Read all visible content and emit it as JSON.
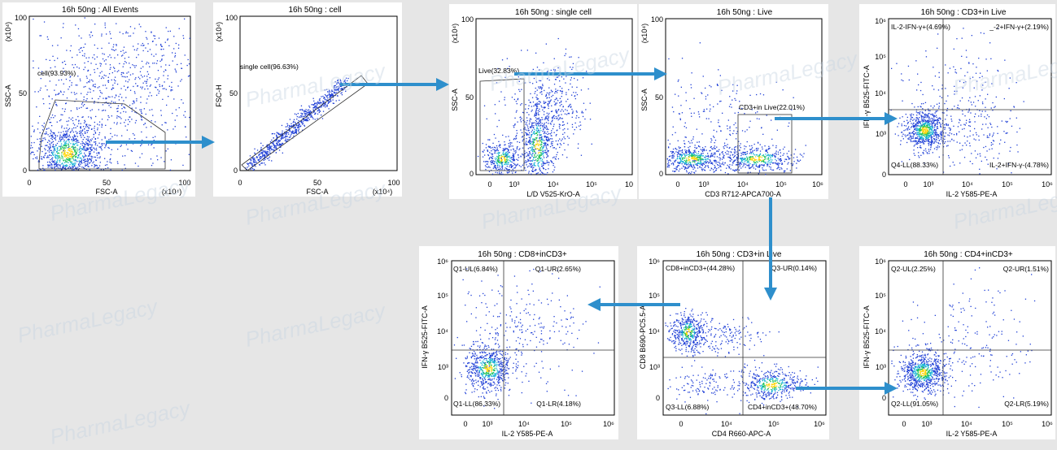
{
  "watermark": "PharmaLegacy",
  "colors": {
    "events": "#1f3fd6",
    "arrow": "#2e8fcc"
  },
  "chart_data": [
    {
      "id": "p1",
      "type": "scatter",
      "title": "16h 50ng : All Events",
      "xlabel": "FSC-A",
      "ylabel": "SSC-A",
      "x_unit": "(x10⁴)",
      "y_unit": "(x10⁴)",
      "scale": "linear",
      "xlim": [
        0,
        100
      ],
      "ylim": [
        0,
        100
      ],
      "xticks": [
        "0",
        "50",
        "100"
      ],
      "yticks": [
        "0",
        "50",
        "100"
      ],
      "gates": [
        {
          "name": "cell",
          "label": "cell(93.93%)",
          "pct": 93.93
        }
      ]
    },
    {
      "id": "p2",
      "type": "scatter",
      "title": "16h 50ng : cell",
      "xlabel": "FSC-A",
      "ylabel": "FSC-H",
      "x_unit": "(x10⁴)",
      "y_unit": "(x10⁴)",
      "scale": "linear",
      "xlim": [
        0,
        100
      ],
      "ylim": [
        0,
        100
      ],
      "xticks": [
        "0",
        "50",
        "100"
      ],
      "yticks": [
        "0",
        "50",
        "100"
      ],
      "gates": [
        {
          "name": "single cell",
          "label": "single cell(96.63%)",
          "pct": 96.63
        }
      ]
    },
    {
      "id": "p3",
      "type": "scatter",
      "title": "16h 50ng : single cell",
      "xlabel": "L/D V525-KrO-A",
      "ylabel": "SSC-A",
      "y_unit": "(x10⁴)",
      "scale": "log-x",
      "ylim": [
        0,
        100
      ],
      "xticks": [
        "0",
        "10³",
        "10⁴",
        "10⁵",
        "10"
      ],
      "yticks": [
        "0",
        "50",
        "100"
      ],
      "gates": [
        {
          "name": "Live",
          "label": "Live(32.83%)",
          "pct": 32.83
        }
      ]
    },
    {
      "id": "p4",
      "type": "scatter",
      "title": "16h 50ng : Live",
      "xlabel": "CD3 R712-APCA700-A",
      "ylabel": "SSC-A",
      "y_unit": "(x10⁴)",
      "scale": "log-x",
      "ylim": [
        0,
        100
      ],
      "xticks": [
        "0",
        "10³",
        "10⁴",
        "10⁵",
        "10⁶"
      ],
      "yticks": [
        "0",
        "50",
        "100"
      ],
      "gates": [
        {
          "name": "CD3+in Live",
          "label": "CD3+in Live(22.01%)",
          "pct": 22.01
        }
      ]
    },
    {
      "id": "p5",
      "type": "scatter",
      "title": "16h 50ng : CD3+in Live",
      "xlabel": "IL-2 Y585-PE-A",
      "ylabel": "IFN-γ B525-FITC-A",
      "scale": "log",
      "xticks": [
        "0",
        "10³",
        "10⁴",
        "10⁵",
        "10⁶"
      ],
      "yticks": [
        "0",
        "10³",
        "10⁴",
        "10⁵",
        "10⁶"
      ],
      "quadrants": {
        "UL": "IL-2-IFN-γ+(4.69%)",
        "UR": "_-2+IFN-γ+(2.19%)",
        "LL": "Q4-LL(88.33%)",
        "LR": "IL-2+IFN-γ-(4.78%)"
      },
      "values": {
        "UL": 4.69,
        "UR": 2.19,
        "LL": 88.33,
        "LR": 4.78
      }
    },
    {
      "id": "p6",
      "type": "scatter",
      "title": "16h 50ng : CD3+in Live",
      "xlabel": "CD4 R660-APC-A",
      "ylabel": "CD8 B690-PC5.5-A",
      "scale": "log",
      "xticks": [
        "0",
        "10⁴",
        "10⁵",
        "10⁶"
      ],
      "yticks": [
        "0",
        "10³",
        "10⁴",
        "10⁵",
        "10⁶"
      ],
      "quadrants": {
        "UL": "CD8+inCD3+(44.28%)",
        "UR": "Q3-UR(0.14%)",
        "LL": "Q3-LL(6.88%)",
        "LR": "CD4+inCD3+(48.70%)"
      },
      "values": {
        "UL": 44.28,
        "UR": 0.14,
        "LL": 6.88,
        "LR": 48.7
      }
    },
    {
      "id": "p7",
      "type": "scatter",
      "title": "16h 50ng : CD8+inCD3+",
      "xlabel": "IL-2 Y585-PE-A",
      "ylabel": "IFN-γ B525-FITC-A",
      "scale": "log",
      "xticks": [
        "0",
        "10³",
        "10⁴",
        "10⁵",
        "10⁶"
      ],
      "yticks": [
        "0",
        "10³",
        "10⁴",
        "10⁵",
        "10⁶"
      ],
      "quadrants": {
        "UL": "Q1-UL(6.84%)",
        "UR": "Q1-UR(2.65%)",
        "LL": "Q1-LL(86.33%)",
        "LR": "Q1-LR(4.18%)"
      },
      "values": {
        "UL": 6.84,
        "UR": 2.65,
        "LL": 86.33,
        "LR": 4.18
      }
    },
    {
      "id": "p8",
      "type": "scatter",
      "title": "16h 50ng : CD4+inCD3+",
      "xlabel": "IL-2 Y585-PE-A",
      "ylabel": "IFN-γ B525-FITC-A",
      "scale": "log",
      "xticks": [
        "0",
        "10³",
        "10⁴",
        "10⁵",
        "10⁶"
      ],
      "yticks": [
        "0",
        "10³",
        "10⁴",
        "10⁵",
        "10⁶"
      ],
      "quadrants": {
        "UL": "Q2-UL(2.25%)",
        "UR": "Q2-UR(1.51%)",
        "LL": "Q2-LL(91.05%)",
        "LR": "Q2-LR(5.19%)"
      },
      "values": {
        "UL": 2.25,
        "UR": 1.51,
        "LL": 91.05,
        "LR": 5.19
      }
    }
  ]
}
